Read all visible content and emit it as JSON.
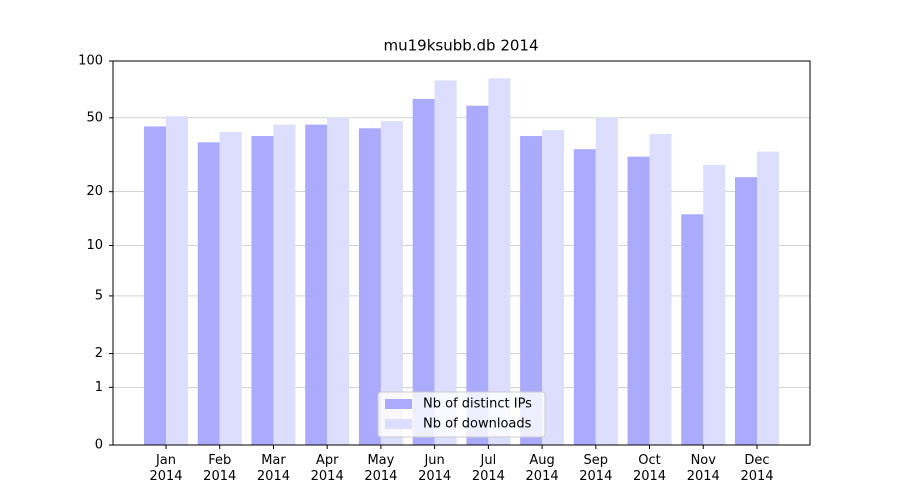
{
  "chart_data": {
    "type": "bar",
    "title": "mu19ksubb.db 2014",
    "categories": [
      "Jan\n2014",
      "Feb\n2014",
      "Mar\n2014",
      "Apr\n2014",
      "May\n2014",
      "Jun\n2014",
      "Jul\n2014",
      "Aug\n2014",
      "Sep\n2014",
      "Oct\n2014",
      "Nov\n2014",
      "Dec\n2014"
    ],
    "series": [
      {
        "name": "Nb of distinct IPs",
        "color": "#aaaaff",
        "values": [
          45,
          37,
          40,
          46,
          44,
          63,
          58,
          40,
          34,
          31,
          15,
          24
        ]
      },
      {
        "name": "Nb of downloads",
        "color": "#ddddff",
        "values": [
          51,
          42,
          46,
          50,
          48,
          79,
          81,
          43,
          50,
          41,
          28,
          33
        ]
      }
    ],
    "yscale": "log1p",
    "ylim": [
      0,
      100
    ],
    "yticks": [
      0,
      1,
      2,
      5,
      10,
      20,
      50,
      100
    ],
    "grid": true,
    "legend": "lower center"
  }
}
